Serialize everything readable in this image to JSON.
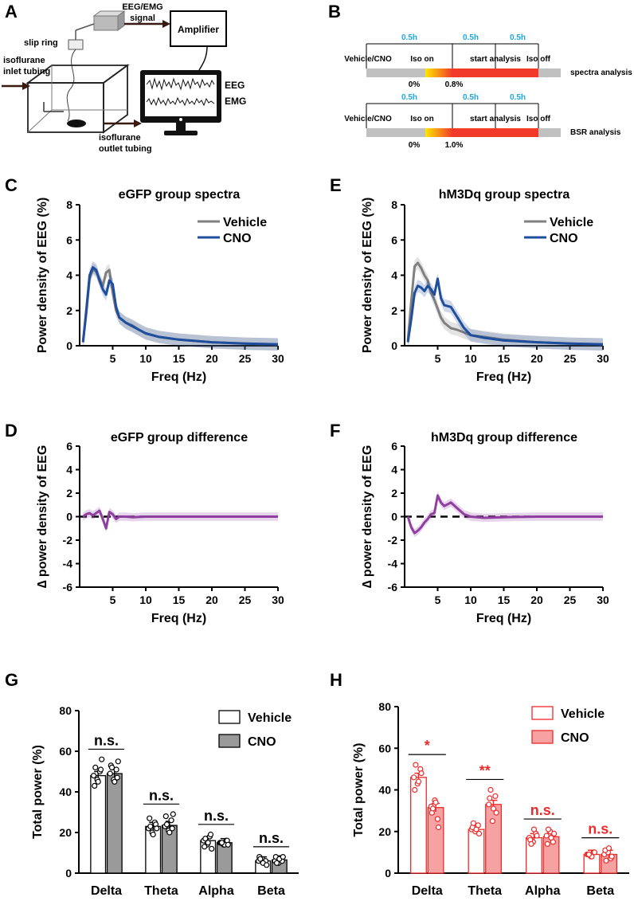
{
  "panels": {
    "A": {
      "letter": "A",
      "signal_label": "EEG/EMG",
      "signal_label2": "signal",
      "amplifier": "Amplifier",
      "slip_ring": "slip ring",
      "inlet1": "isoflurane",
      "inlet2": "inlet tubing",
      "outlet1": "isoflurane",
      "outlet2": "outlet tubing",
      "eeg": "EEG",
      "emg": "EMG"
    },
    "B": {
      "letter": "B",
      "rows": [
        {
          "durations": [
            "0.5h",
            "0.5h",
            "0.5h"
          ],
          "events": [
            "Vehicle/CNO",
            "Iso on",
            "start analysis",
            "Iso off"
          ],
          "start": "0%",
          "end": "0.8%",
          "label": "spectra analysis"
        },
        {
          "durations": [
            "0.5h",
            "0.5h",
            "0.5h"
          ],
          "events": [
            "Vehicle/CNO",
            "Iso on",
            "start analysis",
            "Iso off"
          ],
          "start": "0%",
          "end": "1.0%",
          "label": "BSR  analysis"
        }
      ]
    }
  },
  "chart_data": [
    {
      "id": "C",
      "letter": "C",
      "type": "line",
      "title": "eGFP group spectra",
      "xlabel": "Freq (Hz)",
      "ylabel": "Power density of EEG (%)",
      "xlim": [
        0,
        30
      ],
      "ylim": [
        0,
        8
      ],
      "xticks": [
        "5",
        "10",
        "15",
        "20",
        "25",
        "30"
      ],
      "yticks": [
        "0",
        "2",
        "4",
        "6",
        "8"
      ],
      "legend": [
        "Vehicle",
        "CNO"
      ],
      "series": [
        {
          "name": "Vehicle",
          "color": "#808080",
          "x": [
            0.5,
            1,
            1.5,
            2,
            2.5,
            3,
            3.5,
            4,
            4.5,
            5,
            5.5,
            6,
            7,
            8,
            9,
            10,
            12,
            15,
            20,
            25,
            30
          ],
          "y": [
            0.2,
            1.8,
            3.8,
            4.35,
            4.2,
            3.8,
            3.4,
            4.15,
            4.3,
            3.0,
            2.0,
            1.6,
            1.3,
            1.15,
            0.9,
            0.7,
            0.5,
            0.35,
            0.2,
            0.12,
            0.08
          ]
        },
        {
          "name": "CNO",
          "color": "#1f4e9c",
          "x": [
            0.5,
            1,
            1.5,
            2,
            2.5,
            3,
            3.5,
            4,
            4.5,
            5,
            5.5,
            6,
            7,
            8,
            9,
            10,
            12,
            15,
            20,
            25,
            30
          ],
          "y": [
            0.2,
            2.0,
            4.0,
            4.45,
            4.3,
            3.7,
            3.2,
            2.9,
            3.7,
            3.5,
            2.2,
            1.6,
            1.3,
            1.1,
            0.9,
            0.7,
            0.5,
            0.35,
            0.2,
            0.12,
            0.08
          ]
        }
      ]
    },
    {
      "id": "E",
      "letter": "E",
      "type": "line",
      "title": "hM3Dq group spectra",
      "xlabel": "Freq (Hz)",
      "ylabel": "Power density of EEG (%)",
      "xlim": [
        0,
        30
      ],
      "ylim": [
        0,
        8
      ],
      "xticks": [
        "5",
        "10",
        "15",
        "20",
        "25",
        "30"
      ],
      "yticks": [
        "0",
        "2",
        "4",
        "6",
        "8"
      ],
      "legend": [
        "Vehicle",
        "CNO"
      ],
      "series": [
        {
          "name": "Vehicle",
          "color": "#808080",
          "x": [
            0.5,
            1,
            1.5,
            2,
            2.5,
            3,
            3.5,
            4,
            4.5,
            5,
            5.5,
            6,
            7,
            8,
            9,
            10,
            12,
            15,
            20,
            25,
            30
          ],
          "y": [
            0.3,
            2.5,
            4.5,
            4.7,
            4.4,
            4.0,
            3.7,
            3.0,
            2.6,
            2.1,
            1.6,
            1.3,
            1.0,
            0.9,
            0.75,
            0.6,
            0.5,
            0.35,
            0.2,
            0.12,
            0.08
          ]
        },
        {
          "name": "CNO",
          "color": "#1f4e9c",
          "x": [
            0.5,
            1,
            1.5,
            2,
            2.5,
            3,
            3.5,
            4,
            4.5,
            5,
            5.5,
            6,
            7,
            8,
            9,
            10,
            12,
            15,
            20,
            25,
            30
          ],
          "y": [
            0.2,
            1.5,
            3.0,
            3.4,
            3.3,
            3.1,
            3.4,
            3.2,
            2.9,
            3.8,
            2.7,
            2.3,
            2.2,
            1.6,
            1.0,
            0.6,
            0.45,
            0.3,
            0.2,
            0.12,
            0.08
          ]
        }
      ]
    },
    {
      "id": "D",
      "letter": "D",
      "type": "line",
      "title": "eGFP group difference",
      "xlabel": "Freq (Hz)",
      "ylabel": "∆ power density of EEG",
      "xlim": [
        0,
        30
      ],
      "ylim": [
        -6,
        6
      ],
      "xticks": [
        "5",
        "10",
        "15",
        "20",
        "25",
        "30"
      ],
      "yticks": [
        "-6",
        "-4",
        "-2",
        "0",
        "2",
        "4",
        "6"
      ],
      "series": [
        {
          "name": "difference",
          "color": "#8e3fa0",
          "x": [
            0.5,
            1,
            1.5,
            2,
            2.5,
            3,
            3.5,
            4,
            4.5,
            5,
            5.5,
            6,
            7,
            8,
            10,
            15,
            20,
            25,
            30
          ],
          "y": [
            0,
            0.2,
            0.3,
            0.1,
            0.3,
            0.5,
            -0.2,
            -1.0,
            0.4,
            0.2,
            -0.2,
            0,
            0,
            -0.05,
            0,
            0,
            0,
            0,
            0
          ]
        }
      ]
    },
    {
      "id": "F",
      "letter": "F",
      "type": "line",
      "title": "hM3Dq group difference",
      "xlabel": "Freq (Hz)",
      "ylabel": "∆ power density of EEG",
      "xlim": [
        0,
        30
      ],
      "ylim": [
        -6,
        6
      ],
      "xticks": [
        "5",
        "10",
        "15",
        "20",
        "25",
        "30"
      ],
      "yticks": [
        "-6",
        "-4",
        "-2",
        "0",
        "2",
        "4",
        "6"
      ],
      "series": [
        {
          "name": "difference",
          "color": "#8e3fa0",
          "x": [
            0.5,
            1,
            1.5,
            2,
            2.5,
            3,
            3.5,
            4,
            4.5,
            5,
            5.5,
            6,
            7,
            8,
            9,
            10,
            12,
            15,
            20,
            25,
            30
          ],
          "y": [
            0,
            -0.9,
            -1.4,
            -1.2,
            -0.9,
            -0.5,
            -0.2,
            0.2,
            0.3,
            1.8,
            1.2,
            0.9,
            1.2,
            0.7,
            0.2,
            0,
            -0.1,
            -0.05,
            0,
            0,
            0
          ]
        }
      ]
    },
    {
      "id": "G",
      "letter": "G",
      "type": "bar",
      "title": "",
      "xlabel": "",
      "ylabel": "Total power (%)",
      "ylim": [
        0,
        80
      ],
      "yticks": [
        "0",
        "20",
        "40",
        "60",
        "80"
      ],
      "categories": [
        "Delta",
        "Theta",
        "Alpha",
        "Beta"
      ],
      "legend": [
        "Vehicle",
        "CNO"
      ],
      "series": [
        {
          "name": "Vehicle",
          "values": [
            48,
            23,
            16,
            6
          ],
          "points": [
            [
              48,
              50,
              46,
              43,
              51,
              45,
              52,
              56
            ],
            [
              22,
              25,
              20,
              27,
              24,
              19,
              23,
              22
            ],
            [
              16,
              18,
              14,
              13,
              19,
              15,
              17,
              12
            ],
            [
              6,
              5,
              7,
              8,
              6,
              5,
              7,
              4
            ]
          ]
        },
        {
          "name": "CNO",
          "values": [
            49,
            23.5,
            15,
            6.5
          ],
          "points": [
            [
              49,
              51,
              46,
              53,
              47,
              45,
              52,
              55
            ],
            [
              23,
              26,
              21,
              28,
              22,
              20,
              24,
              29
            ],
            [
              15,
              16,
              14,
              15,
              16,
              14,
              15,
              14
            ],
            [
              6,
              7,
              5,
              8,
              6,
              7,
              5,
              8
            ]
          ]
        }
      ],
      "significance": [
        "n.s.",
        "n.s.",
        "n.s.",
        "n.s."
      ]
    },
    {
      "id": "H",
      "letter": "H",
      "type": "bar",
      "title": "",
      "xlabel": "",
      "ylabel": "Total power (%)",
      "ylim": [
        0,
        80
      ],
      "yticks": [
        "0",
        "20",
        "40",
        "60",
        "80"
      ],
      "categories": [
        "Delta",
        "Theta",
        "Alpha",
        "Beta"
      ],
      "legend": [
        "Vehicle",
        "CNO"
      ],
      "series": [
        {
          "name": "Vehicle",
          "values": [
            46,
            21,
            17,
            9
          ],
          "points": [
            [
              46,
              50,
              43,
              40,
              48,
              44,
              52
            ],
            [
              21,
              23,
              20,
              22,
              19,
              21,
              24
            ],
            [
              17,
              19,
              15,
              16,
              18,
              21,
              14
            ],
            [
              9,
              10,
              8,
              9,
              10,
              8,
              9
            ]
          ]
        },
        {
          "name": "CNO",
          "values": [
            31.5,
            33,
            17.5,
            9
          ],
          "points": [
            [
              32,
              26,
              35,
              29,
              22,
              34,
              31
            ],
            [
              33,
              37,
              25,
              36,
              29,
              31,
              40
            ],
            [
              18,
              15,
              20,
              14,
              19,
              17,
              21
            ],
            [
              9,
              7,
              10,
              11,
              8,
              12,
              6
            ]
          ]
        }
      ],
      "significance": [
        "*",
        "**",
        "n.s.",
        "n.s."
      ]
    }
  ]
}
